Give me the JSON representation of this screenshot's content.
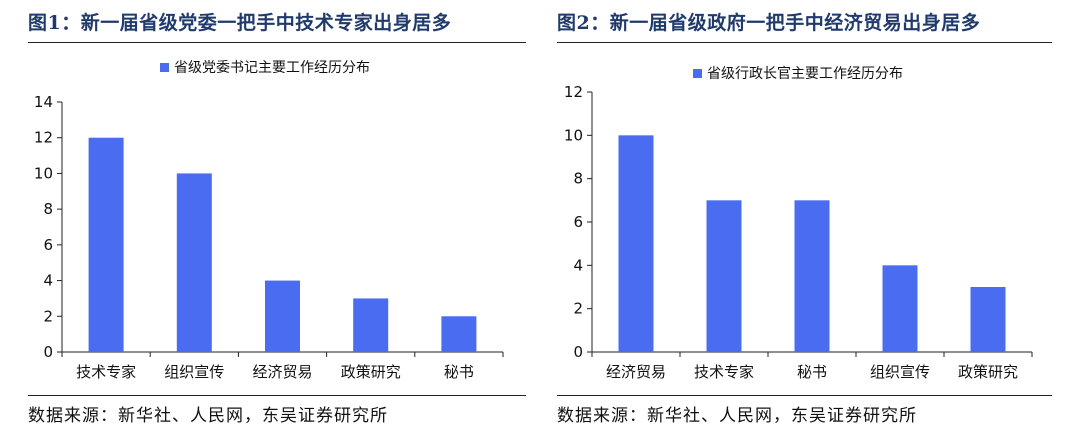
{
  "figures": [
    {
      "title": "图1：新一届省级党委一把手中技术专家出身居多",
      "source": "数据来源：新华社、人民网，东吴证券研究所"
    },
    {
      "title": "图2：新一届省级政府一把手中经济贸易出身居多",
      "source": "数据来源：新华社、人民网，东吴证券研究所"
    }
  ],
  "chart_data": [
    {
      "type": "bar",
      "categories": [
        "技术专家",
        "组织宣传",
        "经济贸易",
        "政策研究",
        "秘书"
      ],
      "series": [
        {
          "name": "省级党委书记主要工作经历分布",
          "values": [
            12,
            10,
            4,
            3,
            2
          ]
        }
      ],
      "xlabel": "",
      "ylabel": "",
      "ylim": [
        0,
        14
      ],
      "yticks": [
        0,
        2,
        4,
        6,
        8,
        10,
        12,
        14
      ],
      "grid": false,
      "legend": "top-center",
      "color": "#4a6cf0"
    },
    {
      "type": "bar",
      "categories": [
        "经济贸易",
        "技术专家",
        "秘书",
        "组织宣传",
        "政策研究"
      ],
      "series": [
        {
          "name": "省级行政长官主要工作经历分布",
          "values": [
            10,
            7,
            7,
            4,
            3
          ]
        }
      ],
      "xlabel": "",
      "ylabel": "",
      "ylim": [
        0,
        12
      ],
      "yticks": [
        0,
        2,
        4,
        6,
        8,
        10,
        12
      ],
      "grid": false,
      "legend": "top-center",
      "color": "#4a6cf0"
    }
  ]
}
